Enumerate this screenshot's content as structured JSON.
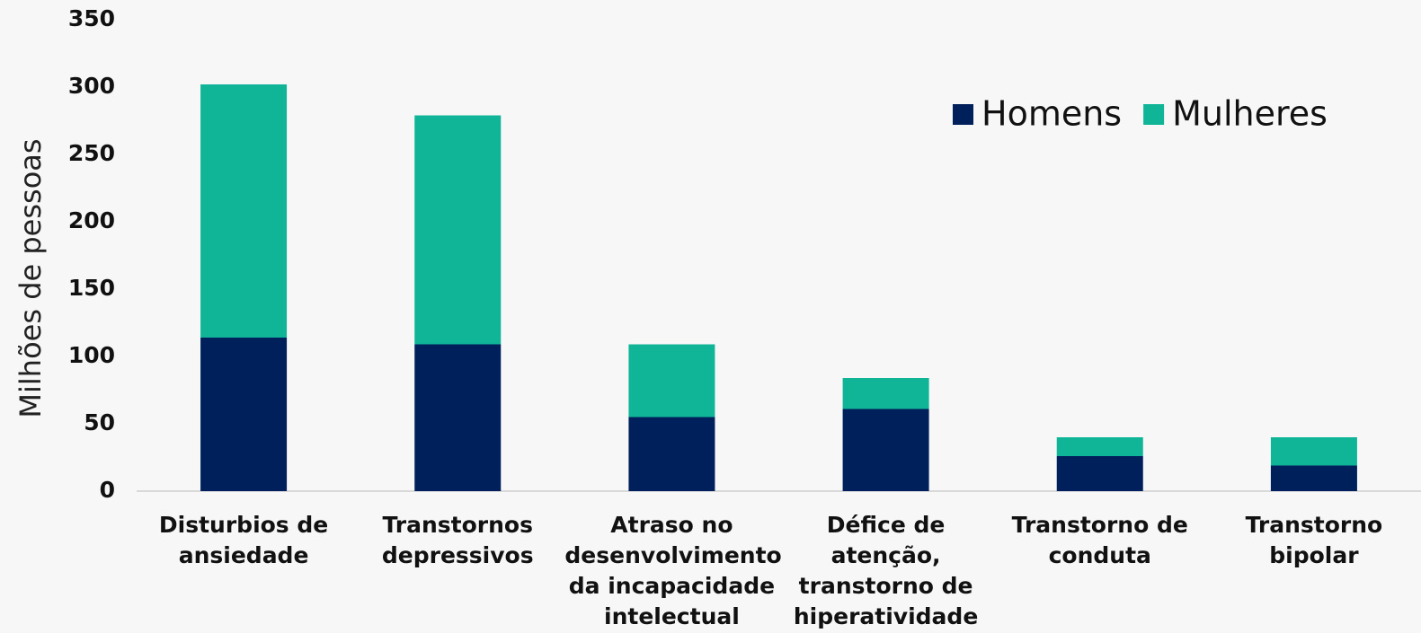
{
  "chart_data": {
    "type": "stacked_bar",
    "y_label": "Milhões de pessoas",
    "categories": [
      "Disturbios de\nansiedade",
      "Transtornos\ndepressivos",
      "Atraso no\ndesenvolvimento\nda incapacidade\nintelectual",
      "Défice de\natenção,\ntranstorno de\nhiperatividade",
      "Transtorno de\nconduta",
      "Transtorno\nbipolar"
    ],
    "series": [
      {
        "name": "Homens",
        "color": "#00205b",
        "values": [
          114,
          109,
          55,
          61,
          26,
          19
        ]
      },
      {
        "name": "Mulheres",
        "color": "#10b597",
        "values": [
          188,
          170,
          54,
          23,
          14,
          21
        ]
      }
    ],
    "ylim": [
      0,
      350
    ],
    "yticks": [
      0,
      50,
      100,
      150,
      200,
      250,
      300,
      350
    ],
    "grid": false,
    "legend": "upper right"
  }
}
